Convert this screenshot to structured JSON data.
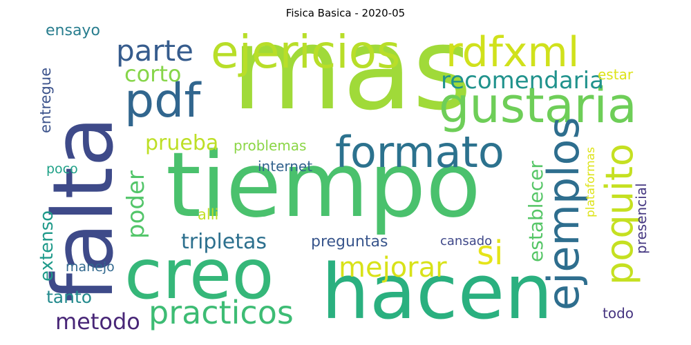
{
  "title": "Fisica Basica  - 2020-05",
  "words": [
    {
      "text": "mas",
      "color": "#a0da39"
    },
    {
      "text": "tiempo",
      "color": "#4ac16d"
    },
    {
      "text": "falta",
      "color": "#3e4a89"
    },
    {
      "text": "hacen",
      "color": "#2ab07f"
    },
    {
      "text": "creo",
      "color": "#35b779"
    },
    {
      "text": "gustaria",
      "color": "#6ece58"
    },
    {
      "text": "ejericios",
      "color": "#b8de29"
    },
    {
      "text": "rdfxml",
      "color": "#d0e11c"
    },
    {
      "text": "formato",
      "color": "#2c728e"
    },
    {
      "text": "pdf",
      "color": "#31668e"
    },
    {
      "text": "ejemplos",
      "color": "#2e6e8e"
    },
    {
      "text": "poquito",
      "color": "#c5e021"
    },
    {
      "text": "practicos",
      "color": "#3dbc74"
    },
    {
      "text": "mejorar",
      "color": "#d8e219"
    },
    {
      "text": "si",
      "color": "#e5e419"
    },
    {
      "text": "parte",
      "color": "#365c8d"
    },
    {
      "text": "corto",
      "color": "#86d549"
    },
    {
      "text": "recomendaria",
      "color": "#20928c"
    },
    {
      "text": "metodo",
      "color": "#482677"
    },
    {
      "text": "tripletas",
      "color": "#2d708e"
    },
    {
      "text": "prueba",
      "color": "#bddf26"
    },
    {
      "text": "poder",
      "color": "#52c569"
    },
    {
      "text": "establecer",
      "color": "#56c667"
    },
    {
      "text": "extenso",
      "color": "#1f9a8a"
    },
    {
      "text": "tanto",
      "color": "#238a8d"
    },
    {
      "text": "preguntas",
      "color": "#39568c"
    },
    {
      "text": "presencial",
      "color": "#453781"
    },
    {
      "text": "plataformas",
      "color": "#dde318"
    },
    {
      "text": "ensayo",
      "color": "#287d8e"
    },
    {
      "text": "entregue",
      "color": "#3b528b"
    },
    {
      "text": "estar",
      "color": "#dde318"
    },
    {
      "text": "problemas",
      "color": "#8bd646"
    },
    {
      "text": "internet",
      "color": "#33638d"
    },
    {
      "text": "poco",
      "color": "#1fa187"
    },
    {
      "text": "alli",
      "color": "#c2df23"
    },
    {
      "text": "cansado",
      "color": "#3f4889"
    },
    {
      "text": "manejo",
      "color": "#31688e"
    },
    {
      "text": "todo",
      "color": "#463480"
    }
  ]
}
